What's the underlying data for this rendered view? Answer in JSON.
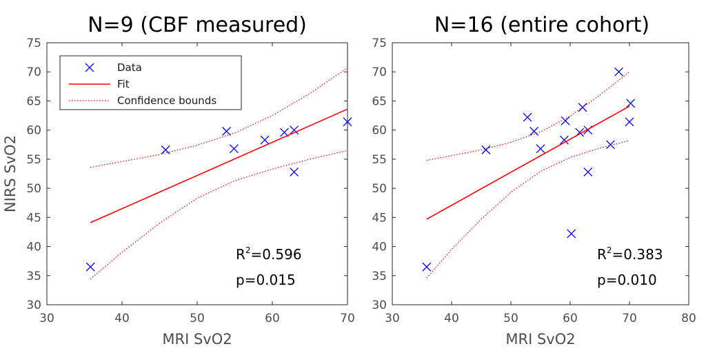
{
  "colors": {
    "data_marker": "#0000ff",
    "fit_line": "#ff0000",
    "confidence_line": "#ff0000",
    "axis": "#262626",
    "tick_text": "#4d4d4d"
  },
  "legend": {
    "data_label": "Data",
    "fit_label": "Fit",
    "confidence_label": "Confidence bounds"
  },
  "chart_data": [
    {
      "type": "scatter",
      "title": "N=9 (CBF measured)",
      "xlabel": "MRI SvO2",
      "ylabel": "NIRS SvO2",
      "xlim": [
        30,
        70
      ],
      "ylim": [
        30,
        75
      ],
      "xticks": [
        30,
        40,
        50,
        60,
        70
      ],
      "yticks": [
        30,
        35,
        40,
        45,
        50,
        55,
        60,
        65,
        70,
        75
      ],
      "grid": false,
      "legend_position": "top-left",
      "r2_label": "R",
      "r2_value": "=0.596",
      "p_text": "p=0.015",
      "series": [
        {
          "name": "Data",
          "kind": "marker-x",
          "x": [
            35.8,
            45.8,
            53.9,
            54.9,
            59.0,
            61.6,
            62.9,
            62.9,
            70.0
          ],
          "y": [
            36.5,
            56.6,
            59.8,
            56.8,
            58.3,
            59.6,
            60.0,
            52.8,
            61.4
          ]
        },
        {
          "name": "Fit",
          "kind": "solid-line",
          "x": [
            35.8,
            70.0
          ],
          "y": [
            44.1,
            63.6
          ]
        },
        {
          "name": "Confidence bounds (upper)",
          "kind": "dotted-line",
          "x": [
            35.8,
            40.0,
            45.0,
            50.0,
            55.0,
            60.0,
            65.0,
            70.0
          ],
          "y": [
            53.6,
            54.6,
            55.8,
            57.4,
            59.5,
            62.5,
            66.3,
            70.7
          ]
        },
        {
          "name": "Confidence bounds (lower)",
          "kind": "dotted-line",
          "x": [
            35.8,
            40.0,
            45.0,
            50.0,
            55.0,
            60.0,
            65.0,
            70.0
          ],
          "y": [
            34.4,
            39.0,
            44.0,
            48.3,
            51.3,
            53.3,
            55.0,
            56.5
          ]
        }
      ]
    },
    {
      "type": "scatter",
      "title": "N=16 (entire cohort)",
      "xlabel": "MRI SvO2",
      "ylabel": "",
      "xlim": [
        30,
        80
      ],
      "ylim": [
        30,
        75
      ],
      "xticks": [
        30,
        40,
        50,
        60,
        70,
        80
      ],
      "yticks": [
        30,
        35,
        40,
        45,
        50,
        55,
        60,
        65,
        70,
        75
      ],
      "grid": false,
      "legend_position": "none",
      "r2_label": "R",
      "r2_value": "=0.383",
      "p_text": "p=0.010",
      "series": [
        {
          "name": "Data",
          "kind": "marker-x",
          "x": [
            35.8,
            45.8,
            52.8,
            53.9,
            55.0,
            59.0,
            59.2,
            60.2,
            61.6,
            62.1,
            63.0,
            63.0,
            66.8,
            68.2,
            70.0,
            70.2
          ],
          "y": [
            36.5,
            56.6,
            62.2,
            59.8,
            56.8,
            58.3,
            61.6,
            42.2,
            59.6,
            63.9,
            60.0,
            52.8,
            57.5,
            70.0,
            61.4,
            64.6
          ]
        },
        {
          "name": "Fit",
          "kind": "solid-line",
          "x": [
            35.8,
            70.0
          ],
          "y": [
            44.7,
            64.1
          ]
        },
        {
          "name": "Confidence bounds (upper)",
          "kind": "dotted-line",
          "x": [
            35.8,
            40.0,
            45.0,
            50.0,
            55.0,
            60.0,
            65.0,
            70.0
          ],
          "y": [
            54.8,
            55.6,
            56.6,
            57.9,
            59.7,
            62.4,
            66.0,
            70.0
          ]
        },
        {
          "name": "Confidence bounds (lower)",
          "kind": "dotted-line",
          "x": [
            35.8,
            40.0,
            45.0,
            50.0,
            55.0,
            60.0,
            65.0,
            70.0
          ],
          "y": [
            34.6,
            39.5,
            44.7,
            49.3,
            52.9,
            55.3,
            56.9,
            58.2
          ]
        }
      ]
    }
  ]
}
